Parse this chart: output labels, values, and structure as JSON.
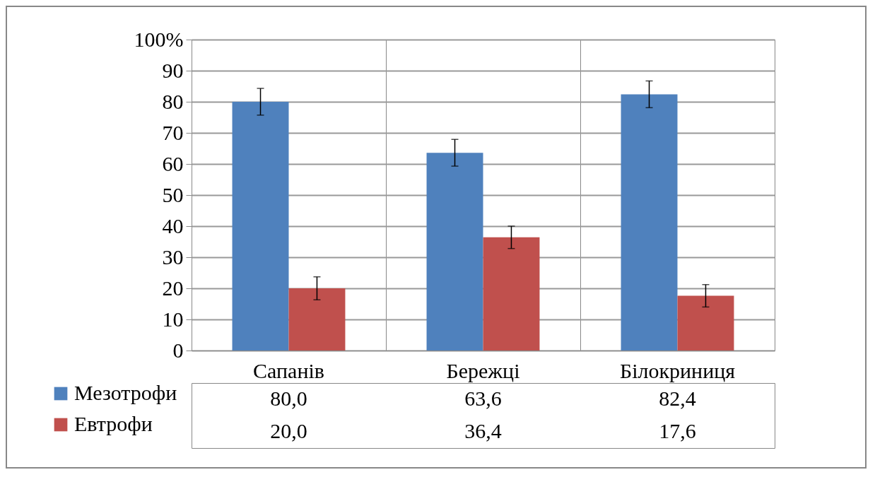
{
  "chart_data": {
    "type": "bar",
    "categories": [
      "Сапанів",
      "Бережці",
      "Білокриниця"
    ],
    "series": [
      {
        "name": "Мезотрофи",
        "color": "#4f81bd",
        "values": [
          80.0,
          63.6,
          82.4
        ],
        "value_labels": [
          "80,0",
          "63,6",
          "82,4"
        ],
        "errors": [
          4.3,
          4.3,
          4.3
        ]
      },
      {
        "name": "Евтрофи",
        "color": "#c0504d",
        "values": [
          20.0,
          36.4,
          17.6
        ],
        "value_labels": [
          "20,0",
          "36,4",
          "17,6"
        ],
        "errors": [
          3.7,
          3.6,
          3.6
        ]
      }
    ],
    "ylim": [
      0,
      100
    ],
    "yticks": [
      0,
      10,
      20,
      30,
      40,
      50,
      60,
      70,
      80,
      {
        "value": 90,
        "label": "90"
      },
      {
        "value": 100,
        "label": "100%"
      }
    ],
    "grid": "y",
    "legend": "bottom left"
  }
}
